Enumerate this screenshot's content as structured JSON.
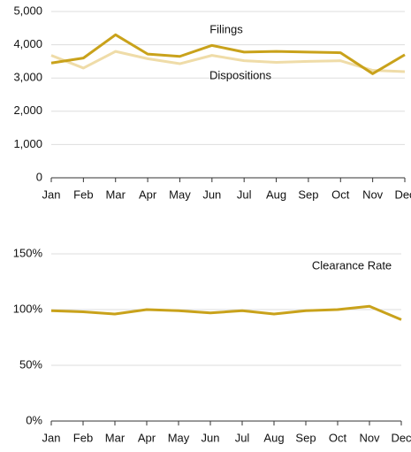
{
  "chart_data": [
    {
      "type": "line",
      "categories": [
        "Jan",
        "Feb",
        "Mar",
        "Apr",
        "May",
        "Jun",
        "Jul",
        "Aug",
        "Sep",
        "Oct",
        "Nov",
        "Dec"
      ],
      "series": [
        {
          "name": "Filings",
          "color": "#c9a21b",
          "values": [
            3450,
            3600,
            4300,
            3720,
            3650,
            3980,
            3780,
            3800,
            3780,
            3760,
            3130,
            3700
          ]
        },
        {
          "name": "Dispositions",
          "color": "#efdca8",
          "values": [
            3680,
            3300,
            3800,
            3580,
            3430,
            3680,
            3520,
            3470,
            3500,
            3520,
            3230,
            3190
          ]
        }
      ],
      "ylim": [
        0,
        5000
      ],
      "yticks": [
        0,
        {
          "value": 1000,
          "label": "1,000"
        },
        {
          "value": 2000,
          "label": "2,000"
        },
        {
          "value": 3000,
          "label": "3,000"
        },
        {
          "value": 4000,
          "label": "4,000"
        },
        {
          "value": 5000,
          "label": "5,000"
        }
      ],
      "grid": true
    },
    {
      "type": "line",
      "categories": [
        "Jan",
        "Feb",
        "Mar",
        "Apr",
        "May",
        "Jun",
        "Jul",
        "Aug",
        "Sep",
        "Oct",
        "Nov",
        "Dec"
      ],
      "series": [
        {
          "name": "Clearance Rate",
          "color": "#c9a21b",
          "values": [
            99,
            98,
            96,
            100,
            99,
            97,
            99,
            96,
            99,
            100,
            103,
            91
          ]
        }
      ],
      "ylim": [
        0,
        150
      ],
      "yticks": [
        {
          "value": 0,
          "label": "0%"
        },
        {
          "value": 50,
          "label": "50%"
        },
        {
          "value": 100,
          "label": "100%"
        },
        {
          "value": 150,
          "label": "150%"
        }
      ],
      "grid": true
    }
  ]
}
